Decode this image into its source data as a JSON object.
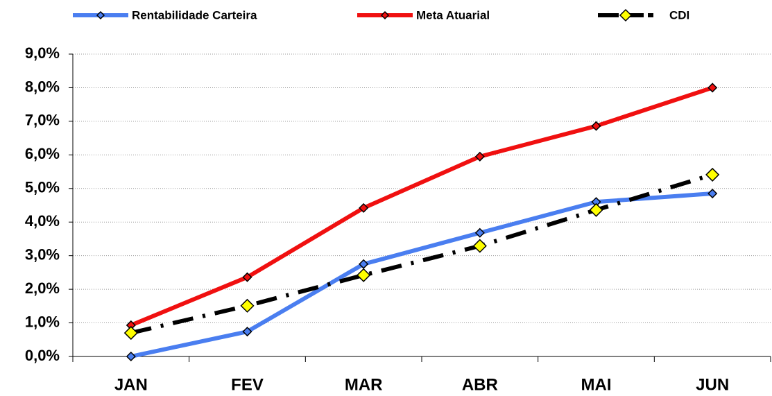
{
  "chart_data": {
    "type": "line",
    "categories": [
      "JAN",
      "FEV",
      "MAR",
      "ABR",
      "MAI",
      "JUN"
    ],
    "series": [
      {
        "name": "Rentabilidade Carteira",
        "color": "#4a7ef0",
        "marker_color": "#4a7ef0",
        "dash": "solid",
        "values": [
          0.0,
          0.74,
          2.75,
          3.68,
          4.6,
          4.85
        ]
      },
      {
        "name": "Meta Atuarial",
        "color": "#f01010",
        "marker_color": "#f01010",
        "dash": "solid",
        "values": [
          0.93,
          2.36,
          4.42,
          5.95,
          6.86,
          8.0
        ]
      },
      {
        "name": "CDI",
        "color": "#000000",
        "marker_color": "#ffff00",
        "dash": "dashdot",
        "values": [
          0.7,
          1.51,
          2.42,
          3.29,
          4.36,
          5.41
        ]
      }
    ],
    "ylim": [
      0,
      9
    ],
    "yticks": [
      {
        "value": 0,
        "label": "0,0%"
      },
      {
        "value": 1,
        "label": "1,0%"
      },
      {
        "value": 2,
        "label": "2,0%"
      },
      {
        "value": 3,
        "label": "3,0%"
      },
      {
        "value": 4,
        "label": "4,0%"
      },
      {
        "value": 5,
        "label": "5,0%"
      },
      {
        "value": 6,
        "label": "6,0%"
      },
      {
        "value": 7,
        "label": "7,0%"
      },
      {
        "value": 8,
        "label": "8,0%"
      },
      {
        "value": 9,
        "label": "9,0%"
      }
    ],
    "grid": true,
    "legend": "top"
  }
}
